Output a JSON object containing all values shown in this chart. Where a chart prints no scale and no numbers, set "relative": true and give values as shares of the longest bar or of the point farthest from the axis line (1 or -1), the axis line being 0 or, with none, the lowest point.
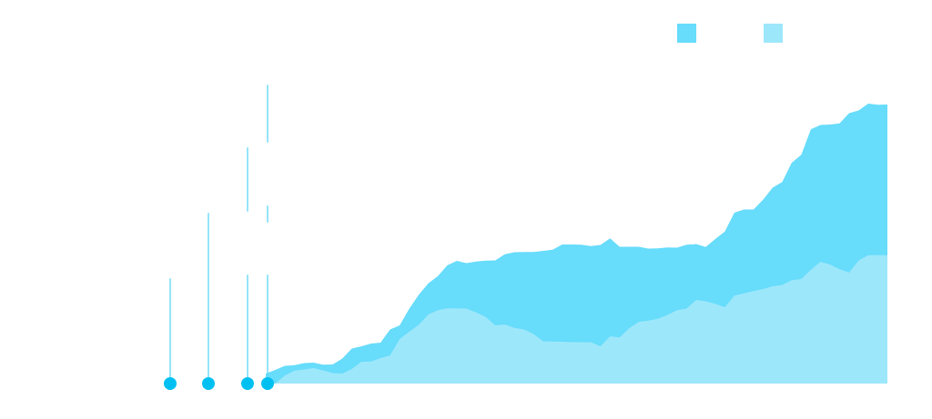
{
  "chart_data": {
    "type": "area",
    "relative": true,
    "categories": [
      null,
      null,
      null,
      null,
      null,
      null,
      null,
      null,
      null,
      null,
      null,
      null,
      null,
      null,
      null,
      null,
      null,
      null,
      null,
      null,
      null,
      null,
      null,
      null,
      null,
      null,
      null,
      null,
      null,
      null,
      null,
      null,
      null,
      null,
      null,
      null,
      null,
      null,
      null,
      null,
      null,
      null,
      null,
      null,
      null,
      null,
      null,
      null,
      null,
      null,
      null,
      null,
      null,
      null,
      null,
      null,
      null,
      null,
      null,
      null,
      null,
      null,
      null,
      null,
      null,
      null
    ],
    "series": [
      {
        "color": "#67dcfb",
        "values": [
          0.036,
          0.049,
          0.063,
          0.066,
          0.073,
          0.075,
          0.067,
          0.068,
          0.089,
          0.125,
          0.133,
          0.143,
          0.146,
          0.193,
          0.208,
          0.267,
          0.317,
          0.358,
          0.384,
          0.423,
          0.438,
          0.43,
          0.436,
          0.439,
          0.44,
          0.462,
          0.469,
          0.47,
          0.47,
          0.474,
          0.478,
          0.497,
          0.497,
          0.496,
          0.491,
          0.495,
          0.519,
          0.489,
          0.489,
          0.489,
          0.482,
          0.483,
          0.486,
          0.485,
          0.496,
          0.498,
          0.488,
          0.516,
          0.543,
          0.61,
          0.622,
          0.622,
          0.657,
          0.7,
          0.72,
          0.789,
          0.817,
          0.908,
          0.924,
          0.925,
          0.929,
          0.966,
          0.976,
          1.0,
          0.996,
          0.997
        ]
      },
      {
        "color": "#9de7fb",
        "values": [
          null,
          0,
          0.029,
          0.046,
          0.05,
          0.055,
          0.047,
          0.037,
          0.036,
          0.052,
          0.078,
          0.079,
          0.091,
          0.101,
          0.159,
          0.185,
          0.21,
          0.247,
          0.262,
          0.269,
          0.269,
          0.268,
          0.254,
          0.238,
          0.208,
          0.211,
          0.199,
          0.193,
          0.177,
          0.151,
          0.15,
          0.149,
          0.148,
          0.148,
          0.148,
          0.133,
          0.169,
          0.165,
          0.197,
          0.221,
          0.225,
          0.231,
          0.245,
          0.262,
          0.268,
          0.299,
          0.294,
          0.285,
          0.273,
          0.314,
          0.322,
          0.33,
          0.338,
          0.347,
          0.352,
          0.369,
          0.373,
          0.407,
          0.435,
          0.425,
          0.408,
          0.397,
          0.44,
          0.459,
          0.459,
          0.459
        ]
      }
    ]
  }
}
